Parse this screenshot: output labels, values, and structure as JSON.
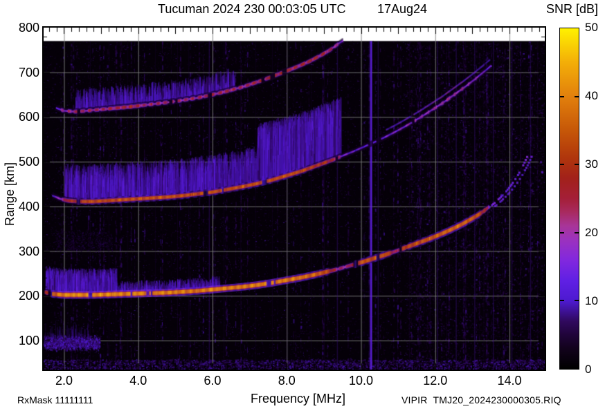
{
  "title": {
    "main": "Tucuman 2024 230 00:03:05 UTC",
    "date": "17Aug24"
  },
  "footer": {
    "rx_mask": "RxMask 11111111",
    "file_name": "VIPIR  TMJ20_2024230000305.RIQ"
  },
  "colorbar": {
    "title": "SNR [dB]",
    "min": 0,
    "max": 50,
    "ticks": [
      {
        "v": 0,
        "label": "0"
      },
      {
        "v": 10,
        "label": "10"
      },
      {
        "v": 20,
        "label": "20"
      },
      {
        "v": 30,
        "label": "30"
      },
      {
        "v": 40,
        "label": "40"
      },
      {
        "v": 50,
        "label": "50"
      }
    ],
    "dash_ticks": [
      10,
      20,
      30,
      40
    ],
    "gradient_stops": [
      [
        0,
        "#000000"
      ],
      [
        3,
        "#12021c"
      ],
      [
        5,
        "#20043a"
      ],
      [
        7,
        "#30095e"
      ],
      [
        10,
        "#4d1ad0"
      ],
      [
        13,
        "#6020e4"
      ],
      [
        16,
        "#8228de"
      ],
      [
        19,
        "#9c32bd"
      ],
      [
        21,
        "#a83598"
      ],
      [
        23,
        "#a82a60"
      ],
      [
        25,
        "#a41f38"
      ],
      [
        28,
        "#a2211a"
      ],
      [
        31,
        "#b0360c"
      ],
      [
        35,
        "#c65708"
      ],
      [
        40,
        "#e2800c"
      ],
      [
        45,
        "#f3ae08"
      ],
      [
        50,
        "#fff100"
      ]
    ]
  },
  "axes": {
    "x_label": "Frequency [MHz]",
    "y_label": "Range [km]",
    "x_ticks": [
      {
        "v": 2,
        "label": "2.0"
      },
      {
        "v": 4,
        "label": "4.0"
      },
      {
        "v": 6,
        "label": "6.0"
      },
      {
        "v": 8,
        "label": "8.0"
      },
      {
        "v": 10,
        "label": "10.0"
      },
      {
        "v": 12,
        "label": "12.0"
      },
      {
        "v": 14,
        "label": "14.0"
      }
    ],
    "y_ticks": [
      {
        "v": 100,
        "label": "100"
      },
      {
        "v": 200,
        "label": "200"
      },
      {
        "v": 300,
        "label": "300"
      },
      {
        "v": 400,
        "label": "400"
      },
      {
        "v": 500,
        "label": "500"
      },
      {
        "v": 600,
        "label": "600"
      },
      {
        "v": 700,
        "label": "700"
      },
      {
        "v": 800,
        "label": "800"
      }
    ]
  },
  "chart_data": {
    "type": "heatmap",
    "title": "Tucuman 2024 230 00:03:05 UTC 17Aug24",
    "xlabel": "Frequency [MHz]",
    "ylabel": "Range [km]",
    "zlabel": "SNR [dB]",
    "xlim": [
      1.45,
      14.95
    ],
    "ylim": [
      35,
      800
    ],
    "zlim": [
      0,
      50
    ],
    "grid": true,
    "x_gridlines": [
      2,
      4,
      6,
      8,
      10,
      12,
      14
    ],
    "y_gridlines": [
      100,
      200,
      300,
      400,
      500,
      600,
      700
    ],
    "x_minor_tick_step": 0.2,
    "y_minor_tick_step": 20,
    "data_top_km": 770,
    "traces": [
      {
        "name": "F-region echo 1st hop",
        "gap": 0.012,
        "core_h": 5,
        "bead_amp": 2.5,
        "points": [
          [
            1.5,
            208,
            26
          ],
          [
            1.7,
            204,
            36
          ],
          [
            2.0,
            202,
            41
          ],
          [
            2.4,
            202,
            43
          ],
          [
            2.8,
            202,
            40
          ],
          [
            3.2,
            203,
            42
          ],
          [
            3.6,
            204,
            40
          ],
          [
            4.0,
            205,
            42
          ],
          [
            4.4,
            206,
            40
          ],
          [
            4.8,
            207,
            41
          ],
          [
            5.2,
            209,
            40
          ],
          [
            5.6,
            211,
            39
          ],
          [
            6.0,
            214,
            41
          ],
          [
            6.4,
            217,
            40
          ],
          [
            6.8,
            220,
            40
          ],
          [
            7.2,
            224,
            41
          ],
          [
            7.6,
            229,
            40
          ],
          [
            8.0,
            235,
            41
          ],
          [
            8.4,
            241,
            39
          ],
          [
            8.8,
            248,
            37
          ],
          [
            9.1,
            254,
            33
          ],
          [
            9.35,
            259,
            23
          ],
          [
            9.6,
            265,
            21
          ],
          [
            9.85,
            271,
            32
          ],
          [
            10.1,
            277,
            35
          ],
          [
            10.4,
            285,
            34
          ],
          [
            10.7,
            293,
            35
          ],
          [
            10.95,
            300,
            22
          ],
          [
            11.2,
            308,
            33
          ],
          [
            11.5,
            317,
            34
          ],
          [
            11.8,
            326,
            35
          ],
          [
            12.1,
            336,
            36
          ],
          [
            12.4,
            347,
            38
          ],
          [
            12.7,
            359,
            38
          ],
          [
            13.0,
            373,
            36
          ],
          [
            13.2,
            383,
            33
          ],
          [
            13.35,
            392,
            27
          ],
          [
            13.45,
            399,
            22
          ]
        ]
      },
      {
        "name": "F-region echo 2nd hop",
        "gap": 0.018,
        "core_h": 4,
        "bead_amp": 2.5,
        "spread_above_from_mhz": 10.7,
        "spread_km": 14,
        "points": [
          [
            1.7,
            424,
            14
          ],
          [
            1.9,
            417,
            18
          ],
          [
            2.1,
            413,
            26
          ],
          [
            2.4,
            411,
            32
          ],
          [
            2.8,
            411,
            34
          ],
          [
            3.2,
            413,
            33
          ],
          [
            3.6,
            415,
            34
          ],
          [
            4.0,
            417,
            35
          ],
          [
            4.4,
            419,
            34
          ],
          [
            4.8,
            421,
            35
          ],
          [
            5.2,
            424,
            34
          ],
          [
            5.6,
            428,
            33
          ],
          [
            6.0,
            432,
            35
          ],
          [
            6.4,
            438,
            34
          ],
          [
            6.8,
            444,
            34
          ],
          [
            7.2,
            451,
            35
          ],
          [
            7.6,
            459,
            34
          ],
          [
            8.0,
            469,
            35
          ],
          [
            8.4,
            479,
            33
          ],
          [
            8.8,
            491,
            31
          ],
          [
            9.1,
            500,
            29
          ],
          [
            9.3,
            506,
            25
          ],
          [
            9.5,
            513,
            16
          ],
          [
            9.8,
            523,
            13
          ],
          [
            10.1,
            534,
            12
          ],
          [
            10.4,
            545,
            13
          ],
          [
            10.7,
            557,
            15
          ],
          [
            11.0,
            570,
            16
          ],
          [
            11.3,
            584,
            17
          ],
          [
            11.6,
            599,
            18
          ],
          [
            11.9,
            615,
            18
          ],
          [
            12.2,
            631,
            19
          ],
          [
            12.5,
            649,
            19
          ],
          [
            12.8,
            667,
            18
          ],
          [
            13.05,
            683,
            17
          ],
          [
            13.3,
            700,
            15
          ],
          [
            13.5,
            714,
            12
          ]
        ]
      },
      {
        "name": "F-region echo 3rd hop",
        "gap": 0.016,
        "core_h": 4,
        "bead_amp": 4,
        "points": [
          [
            1.8,
            620,
            12
          ],
          [
            2.0,
            614,
            19
          ],
          [
            2.3,
            612,
            22
          ],
          [
            2.6,
            614,
            21
          ],
          [
            3.0,
            617,
            22
          ],
          [
            3.4,
            620,
            24
          ],
          [
            3.8,
            623,
            26
          ],
          [
            4.1,
            626,
            23
          ],
          [
            4.4,
            629,
            21
          ],
          [
            4.7,
            632,
            22
          ],
          [
            5.0,
            635,
            21
          ],
          [
            5.3,
            639,
            22
          ],
          [
            5.6,
            643,
            21
          ],
          [
            6.0,
            650,
            23
          ],
          [
            6.4,
            658,
            24
          ],
          [
            6.8,
            667,
            22
          ],
          [
            7.2,
            678,
            25
          ],
          [
            7.6,
            690,
            26
          ],
          [
            8.0,
            703,
            27
          ],
          [
            8.3,
            713,
            24
          ],
          [
            8.6,
            724,
            26
          ],
          [
            8.9,
            737,
            25
          ],
          [
            9.15,
            749,
            23
          ],
          [
            9.35,
            761,
            20
          ],
          [
            9.5,
            770,
            16
          ]
        ]
      }
    ],
    "dotted_tail": {
      "name": "1st-hop O/X mode split near critical frequency",
      "points": [
        [
          13.45,
          399
        ],
        [
          13.6,
          409
        ],
        [
          13.75,
          421
        ],
        [
          13.9,
          434
        ],
        [
          14.05,
          450
        ],
        [
          14.2,
          468
        ],
        [
          14.32,
          486
        ],
        [
          14.42,
          503
        ],
        [
          14.5,
          518
        ]
      ],
      "second_curve_offset_mhz": 0.12,
      "stray_dots": [
        [
          14.84,
          500
        ],
        [
          14.87,
          478
        ]
      ]
    },
    "rfi_lines": {
      "strong": [
        10.25
      ],
      "medium": [
        5.9,
        9.35,
        10.45,
        12.05,
        12.55,
        13.05,
        13.55,
        14.05,
        14.55
      ],
      "faint": [
        2.7,
        3.2,
        3.7,
        4.45,
        5.05,
        5.35,
        6.3,
        6.75,
        7.15,
        7.6,
        8.0,
        8.65,
        9.0,
        11.3,
        11.55,
        11.85,
        12.3,
        12.8,
        13.3,
        13.8,
        14.3,
        14.75
      ]
    },
    "diffuse_spread": [
      {
        "trace": 0,
        "f0": 1.5,
        "f1": 3.4,
        "h_km": 55,
        "n": 2600
      },
      {
        "trace": 0,
        "f0": 3.4,
        "f1": 6.2,
        "h_km": 25,
        "n": 1100
      },
      {
        "trace": 1,
        "f0": 2.0,
        "f1": 7.2,
        "h_km": 80,
        "n": 5200
      },
      {
        "trace": 1,
        "f0": 7.2,
        "f1": 9.45,
        "h_km": 130,
        "n": 5200
      },
      {
        "trace": 2,
        "f0": 2.3,
        "f1": 6.6,
        "h_km": 45,
        "n": 1800
      }
    ],
    "e_region_blob": {
      "f0": 1.45,
      "f1": 2.95,
      "center_km": 95
    },
    "mid_patch": {
      "f0": 1.75,
      "f1": 3.3,
      "km0": 300,
      "km1": 345
    }
  }
}
